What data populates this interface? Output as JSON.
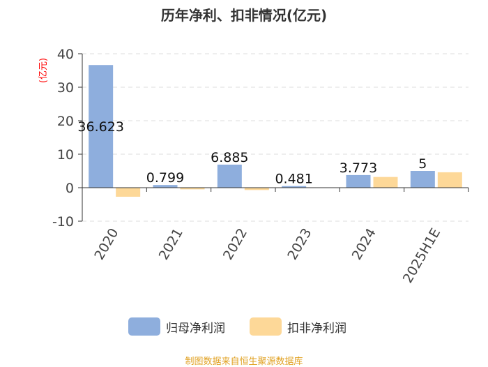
{
  "chart_data": {
    "type": "bar",
    "title": "历年净利、扣非情况(亿元)",
    "ylabel": "(亿元)",
    "categories": [
      "2020",
      "2021",
      "2022",
      "2023",
      "2024",
      "2025H1E"
    ],
    "series": [
      {
        "name": "归母净利润",
        "values": [
          36.623,
          0.799,
          6.885,
          0.481,
          3.773,
          5
        ],
        "color": "#8eaedd",
        "labels": [
          "36.623",
          "0.799",
          "6.885",
          "0.481",
          "3.773",
          "5"
        ]
      },
      {
        "name": "扣非净利润",
        "values": [
          -2.7,
          -0.5,
          -0.7,
          0,
          3.2,
          4.6
        ],
        "color": "#fdd898"
      }
    ],
    "ylim": [
      -10,
      40
    ],
    "yticks": [
      -10,
      0,
      10,
      20,
      30,
      40
    ],
    "grid": true,
    "legend": "bottom"
  },
  "footer": {
    "text": "制图数据来自恒生聚源数据库",
    "color": "#e0a020"
  },
  "ylabel_color": "#ff0000"
}
